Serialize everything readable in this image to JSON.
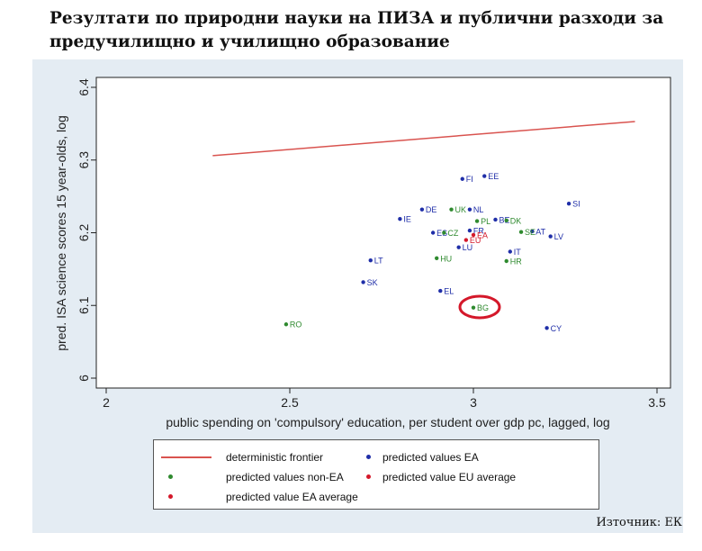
{
  "title": "Резултати по природни науки на ПИЗА и публични разходи за предучилищно и училищно образование",
  "source": "Източник: ЕК",
  "colors": {
    "frontier": "#d9534f",
    "ea": "#1f2ea8",
    "non_ea": "#2f8a2f",
    "highlight": "#d4182a",
    "panel_bg": "#e4ecf3"
  },
  "chart_data": {
    "type": "scatter",
    "xlabel": "public spending on 'compulsory' education, per student over gdp pc, lagged, log",
    "ylabel": "pred. ISA science scores 15 year-olds, log",
    "xlim": [
      2,
      3.5
    ],
    "ylim": [
      6,
      6.4
    ],
    "x_ticks": [
      "2",
      "2.5",
      "3",
      "3.5"
    ],
    "y_ticks": [
      "6",
      "6.1",
      "6.2",
      "6.3",
      "6.4"
    ],
    "grid": false,
    "frontier": {
      "name": "deterministic frontier",
      "x": [
        2.29,
        3.44
      ],
      "y": [
        6.306,
        6.353
      ]
    },
    "series": [
      {
        "name": "predicted values EA",
        "points": [
          {
            "label": "FI",
            "x": 2.97,
            "y": 6.274
          },
          {
            "label": "EE",
            "x": 3.03,
            "y": 6.278
          },
          {
            "label": "SI",
            "x": 3.26,
            "y": 6.24
          },
          {
            "label": "DE",
            "x": 2.86,
            "y": 6.232
          },
          {
            "label": "NL",
            "x": 2.99,
            "y": 6.232
          },
          {
            "label": "IE",
            "x": 2.8,
            "y": 6.219
          },
          {
            "label": "BE",
            "x": 3.06,
            "y": 6.218
          },
          {
            "label": "ES",
            "x": 2.89,
            "y": 6.2
          },
          {
            "label": "FR",
            "x": 2.99,
            "y": 6.203
          },
          {
            "label": "AT",
            "x": 3.16,
            "y": 6.202
          },
          {
            "label": "LV",
            "x": 3.21,
            "y": 6.195
          },
          {
            "label": "LU",
            "x": 2.96,
            "y": 6.18
          },
          {
            "label": "IT",
            "x": 3.1,
            "y": 6.174
          },
          {
            "label": "LT",
            "x": 2.72,
            "y": 6.162
          },
          {
            "label": "SK",
            "x": 2.7,
            "y": 6.132
          },
          {
            "label": "EL",
            "x": 2.91,
            "y": 6.12
          },
          {
            "label": "CY",
            "x": 3.2,
            "y": 6.069
          }
        ]
      },
      {
        "name": "predicted values non-EA",
        "points": [
          {
            "label": "UK",
            "x": 2.94,
            "y": 6.232
          },
          {
            "label": "PL",
            "x": 3.01,
            "y": 6.216
          },
          {
            "label": "DK",
            "x": 3.09,
            "y": 6.217
          },
          {
            "label": "CZ",
            "x": 2.92,
            "y": 6.2
          },
          {
            "label": "SE",
            "x": 3.13,
            "y": 6.201
          },
          {
            "label": "HU",
            "x": 2.9,
            "y": 6.165
          },
          {
            "label": "HR",
            "x": 3.09,
            "y": 6.161
          },
          {
            "label": "BG",
            "x": 3.0,
            "y": 6.097
          },
          {
            "label": "RO",
            "x": 2.49,
            "y": 6.074
          }
        ]
      },
      {
        "name": "predicted value EU average",
        "points": [
          {
            "label": "EU",
            "x": 2.98,
            "y": 6.19
          }
        ]
      },
      {
        "name": "predicted value EA average",
        "points": [
          {
            "label": "EA",
            "x": 3.0,
            "y": 6.197
          }
        ]
      }
    ]
  },
  "legend": [
    {
      "kind": "line",
      "label": "deterministic frontier",
      "color": "#d9534f"
    },
    {
      "kind": "dot",
      "label": "predicted values EA",
      "color": "#1f2ea8"
    },
    {
      "kind": "dot",
      "label": "predicted values non-EA",
      "color": "#2f8a2f"
    },
    {
      "kind": "dot",
      "label": "predicted value EU average",
      "color": "#d4182a"
    },
    {
      "kind": "dot",
      "label": "predicted value EA average",
      "color": "#d4182a"
    }
  ]
}
